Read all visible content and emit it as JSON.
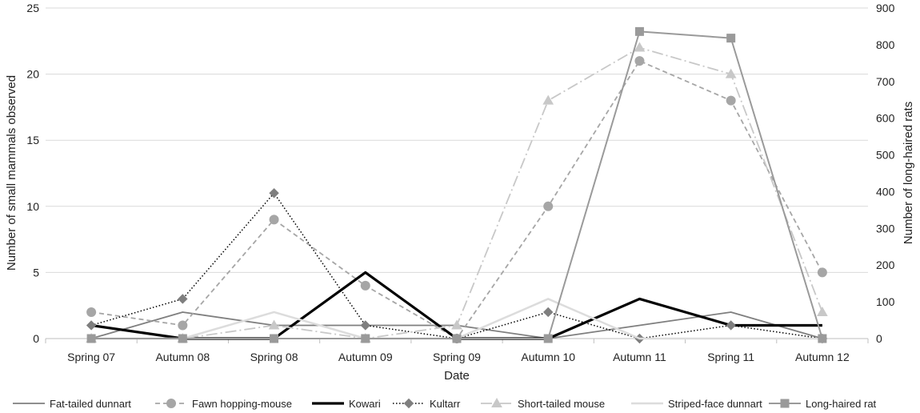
{
  "chart_data": {
    "type": "line",
    "categories": [
      "Spring 07",
      "Autumn 08",
      "Spring 08",
      "Autumn 09",
      "Spring 09",
      "Autumn 10",
      "Autumn 11",
      "Spring 11",
      "Autumn 12"
    ],
    "xlabel": "Date",
    "ylabel": "Number of small mammals observed",
    "y2label": "Number of long-haired rats",
    "ylim": [
      0,
      25
    ],
    "y2lim": [
      0,
      900
    ],
    "yticks": [
      0,
      5,
      10,
      15,
      20,
      25
    ],
    "y2ticks": [
      0,
      100,
      200,
      300,
      400,
      500,
      600,
      700,
      800,
      900
    ],
    "grid": true,
    "legend_position": "bottom",
    "series": [
      {
        "name": "Fat-tailed dunnart",
        "axis": "left",
        "values": [
          0,
          2,
          1,
          1,
          1,
          0,
          1,
          2,
          0
        ],
        "color": "#7f7f7f",
        "dash": "none",
        "width": 1.8,
        "marker": "none"
      },
      {
        "name": "Fawn hopping-mouse",
        "axis": "left",
        "values": [
          2,
          1,
          9,
          4,
          0,
          10,
          21,
          18,
          5
        ],
        "color": "#a6a6a6",
        "dash": "6,4",
        "width": 1.8,
        "marker": "circle"
      },
      {
        "name": "Kowari",
        "axis": "left",
        "values": [
          1,
          0,
          0,
          5,
          0,
          0,
          3,
          1,
          1
        ],
        "color": "#000000",
        "dash": "none",
        "width": 3.2,
        "marker": "none"
      },
      {
        "name": "Kultarr",
        "axis": "left",
        "values": [
          1,
          3,
          11,
          1,
          0,
          2,
          0,
          1,
          0
        ],
        "color": "#000000",
        "dash": "1.5,2.5",
        "width": 1.5,
        "marker": "diamond",
        "marker_color": "#7f7f7f"
      },
      {
        "name": "Short-tailed mouse",
        "axis": "left",
        "values": [
          0,
          0,
          1,
          0,
          1,
          18,
          22,
          20,
          2
        ],
        "color": "#c8c8c8",
        "dash": "14,4,2,4",
        "width": 1.8,
        "marker": "triangle"
      },
      {
        "name": "Striped-face dunnart",
        "axis": "left",
        "values": [
          0,
          0,
          2,
          0,
          0,
          3,
          0,
          0,
          0
        ],
        "color": "#dcdcdc",
        "dash": "none",
        "width": 2.5,
        "marker": "none"
      },
      {
        "name": "Long-haired rat",
        "axis": "right",
        "values": [
          0,
          0,
          0,
          0,
          0,
          0,
          836,
          818,
          0
        ],
        "color": "#9a9a9a",
        "dash": "none",
        "width": 2,
        "marker": "square"
      }
    ]
  }
}
